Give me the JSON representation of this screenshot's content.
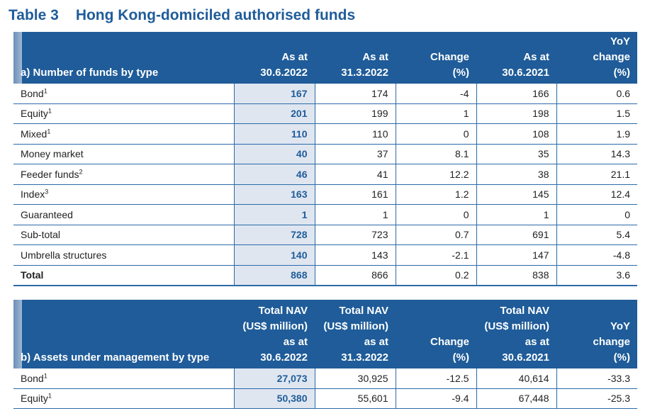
{
  "title": {
    "number": "Table 3",
    "text": "Hong Kong-domiciled authorised funds"
  },
  "table_a": {
    "headers": [
      [
        "a) Number of funds by type"
      ],
      [
        "As at",
        "30.6.2022"
      ],
      [
        "As at",
        "31.3.2022"
      ],
      [
        "Change",
        "(%)"
      ],
      [
        "As at",
        "30.6.2021"
      ],
      [
        "YoY",
        "change",
        "(%)"
      ]
    ],
    "rows": [
      {
        "label": "Bond",
        "sup": "1",
        "values": [
          "167",
          "174",
          "-4",
          "166",
          "0.6"
        ]
      },
      {
        "label": "Equity",
        "sup": "1",
        "values": [
          "201",
          "199",
          "1",
          "198",
          "1.5"
        ]
      },
      {
        "label": "Mixed",
        "sup": "1",
        "values": [
          "110",
          "110",
          "0",
          "108",
          "1.9"
        ]
      },
      {
        "label": "Money market",
        "sup": "",
        "values": [
          "40",
          "37",
          "8.1",
          "35",
          "14.3"
        ]
      },
      {
        "label": "Feeder funds",
        "sup": "2",
        "values": [
          "46",
          "41",
          "12.2",
          "38",
          "21.1"
        ]
      },
      {
        "label": "Index",
        "sup": "3",
        "values": [
          "163",
          "161",
          "1.2",
          "145",
          "12.4"
        ]
      },
      {
        "label": "Guaranteed",
        "sup": "",
        "values": [
          "1",
          "1",
          "0",
          "1",
          "0"
        ]
      },
      {
        "label": "Sub-total",
        "sup": "",
        "values": [
          "728",
          "723",
          "0.7",
          "691",
          "5.4"
        ]
      },
      {
        "label": "Umbrella structures",
        "sup": "",
        "values": [
          "140",
          "143",
          "-2.1",
          "147",
          "-4.8"
        ]
      },
      {
        "label": "Total",
        "sup": "",
        "values": [
          "868",
          "866",
          "0.2",
          "838",
          "3.6"
        ]
      }
    ]
  },
  "table_b": {
    "headers": [
      [
        "b) Assets under management by type"
      ],
      [
        "Total NAV",
        "(US$ million)",
        "as at",
        "30.6.2022"
      ],
      [
        "Total NAV",
        "(US$ million)",
        "as at",
        "31.3.2022"
      ],
      [
        "Change",
        "(%)"
      ],
      [
        "Total NAV",
        "(US$ million)",
        "as at",
        "30.6.2021"
      ],
      [
        "YoY",
        "change",
        "(%)"
      ]
    ],
    "rows": [
      {
        "label": "Bond",
        "sup": "1",
        "values": [
          "27,073",
          "30,925",
          "-12.5",
          "40,614",
          "-33.3"
        ]
      },
      {
        "label": "Equity",
        "sup": "1",
        "values": [
          "50,380",
          "55,601",
          "-9.4",
          "67,448",
          "-25.3"
        ]
      }
    ]
  }
}
